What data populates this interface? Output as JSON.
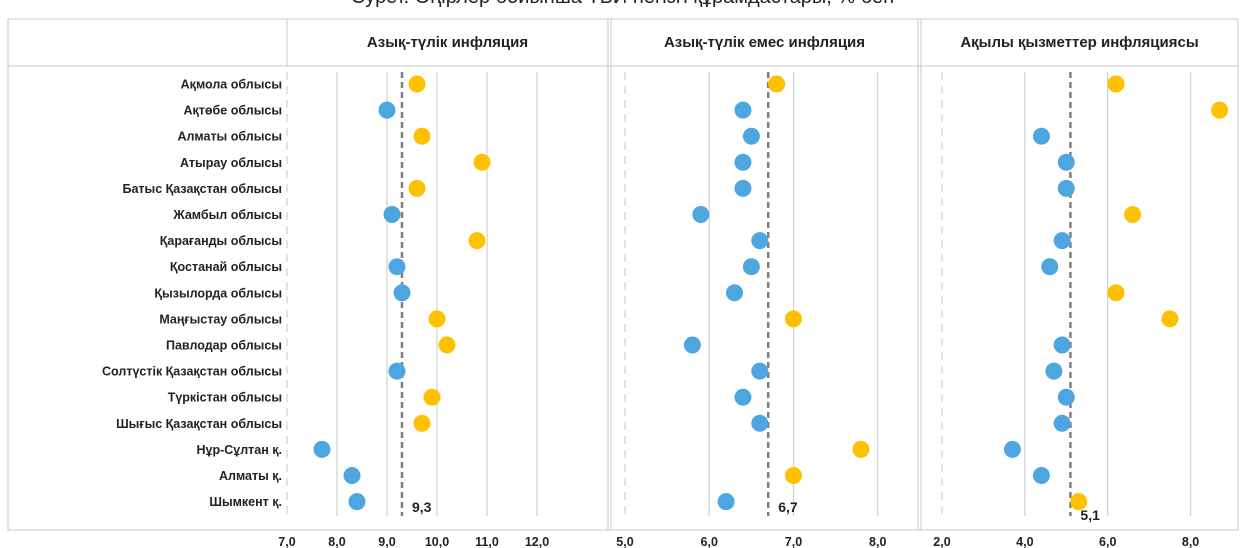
{
  "title": "Сурет. Өңірлер бойынша ТБИ негізгі құрамдастары, % бен",
  "colors": {
    "below": "#4da6e0",
    "above": "#ffc000",
    "gridline": "#d0d0d0",
    "avgline": "#7f7f7f",
    "border": "#c8c8c8"
  },
  "chart_data": {
    "type": "scatter",
    "categories": [
      "Ақмола облысы",
      "Ақтөбе облысы",
      "Алматы облысы",
      "Атырау облысы",
      "Батыс Қазақстан облысы",
      "Жамбыл облысы",
      "Қарағанды облысы",
      "Қостанай облысы",
      "Қызылорда облысы",
      "Маңғыстау облысы",
      "Павлодар облысы",
      "Солтүстік Қазақстан облысы",
      "Түркістан облысы",
      "Шығыс Қазақстан облысы",
      "Нұр-Сұлтан қ.",
      "Алматы қ.",
      "Шымкент қ."
    ],
    "panels": [
      {
        "title": "Азық-түлік инфляция",
        "xlim": [
          7.0,
          12.8
        ],
        "ticks": [
          "7,0",
          "8,0",
          "9,0",
          "10,0",
          "11,0",
          "12,0"
        ],
        "tick_values": [
          7,
          8,
          9,
          10,
          11,
          12
        ],
        "average": 9.3,
        "average_label": "9,3",
        "values": [
          9.6,
          9.0,
          9.7,
          10.9,
          9.6,
          9.1,
          10.8,
          9.2,
          9.3,
          10.0,
          10.2,
          9.2,
          9.9,
          9.7,
          7.7,
          8.3,
          8.4
        ]
      },
      {
        "title": "Азық-түлік емес инфляция",
        "xlim": [
          5.0,
          8.3
        ],
        "ticks": [
          "5,0",
          "6,0",
          "7,0",
          "8,0"
        ],
        "tick_values": [
          5,
          6,
          7,
          8
        ],
        "average": 6.7,
        "average_label": "6,7",
        "values": [
          6.8,
          6.4,
          6.5,
          6.4,
          6.4,
          5.9,
          6.6,
          6.5,
          6.3,
          7.0,
          5.8,
          6.6,
          6.4,
          6.6,
          7.8,
          7.0,
          6.2
        ]
      },
      {
        "title": "Ақылы қызметтер инфляциясы",
        "xlim": [
          2.0,
          9.0
        ],
        "ticks": [
          "2,0",
          "4,0",
          "6,0",
          "8,0"
        ],
        "tick_values": [
          2,
          4,
          6,
          8
        ],
        "average": 5.1,
        "average_label": "5,1",
        "values": [
          6.2,
          8.7,
          4.4,
          5.0,
          5.0,
          6.6,
          4.9,
          4.6,
          6.2,
          7.5,
          4.9,
          4.7,
          5.0,
          4.9,
          3.7,
          4.4,
          5.3
        ]
      }
    ]
  }
}
